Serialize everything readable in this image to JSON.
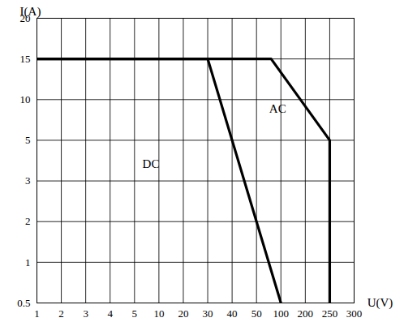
{
  "chart_data": {
    "type": "line",
    "xlabel": "U(V)",
    "ylabel": "I(A)",
    "xlim": [
      1,
      300
    ],
    "ylim": [
      0.5,
      20
    ],
    "xticks": [
      1,
      2,
      3,
      4,
      5,
      10,
      20,
      30,
      40,
      50,
      100,
      200,
      250,
      300
    ],
    "yticks": [
      0.5,
      1,
      2,
      3,
      5,
      10,
      15,
      20
    ],
    "grid": true,
    "series": [
      {
        "name": "DC",
        "color": "#000000",
        "x": [
          1,
          30,
          100
        ],
        "values": [
          15,
          15,
          0.5
        ]
      },
      {
        "name": "AC",
        "color": "#000000",
        "x": [
          1,
          80,
          250,
          250
        ],
        "values": [
          15,
          15,
          5,
          0.5
        ]
      }
    ]
  }
}
